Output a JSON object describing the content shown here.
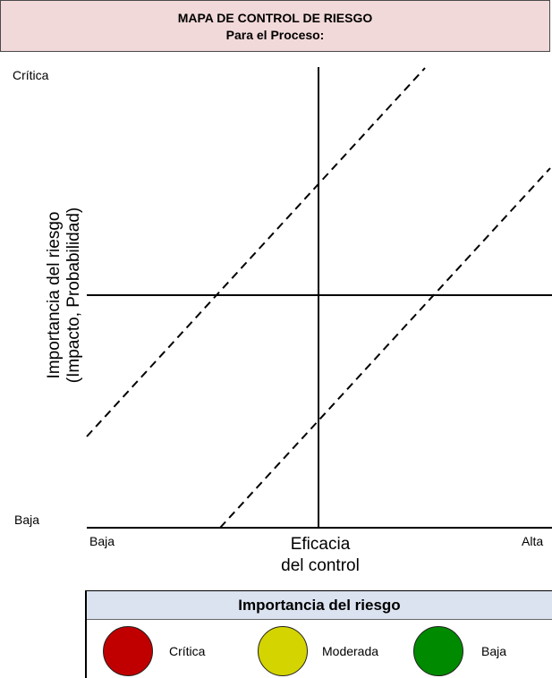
{
  "header": {
    "title": "MAPA DE CONTROL DE RIESGO",
    "subtitle": "Para el Proceso:"
  },
  "y_axis": {
    "top_label": "Crítica",
    "bottom_label": "Baja",
    "title_line1": "Importancia del riesgo",
    "title_line2": "(Impacto, Probabilidad)"
  },
  "x_axis": {
    "left_label": "Baja",
    "right_label": "Alta",
    "title_line1": "Eficacia",
    "title_line2": "del control"
  },
  "legend": {
    "title": "Importancia del riesgo",
    "items": [
      {
        "label": "Crítica",
        "color": "#c00000"
      },
      {
        "label": "Moderada",
        "color": "#d4d400"
      },
      {
        "label": "Baja",
        "color": "#008a00"
      }
    ]
  }
}
